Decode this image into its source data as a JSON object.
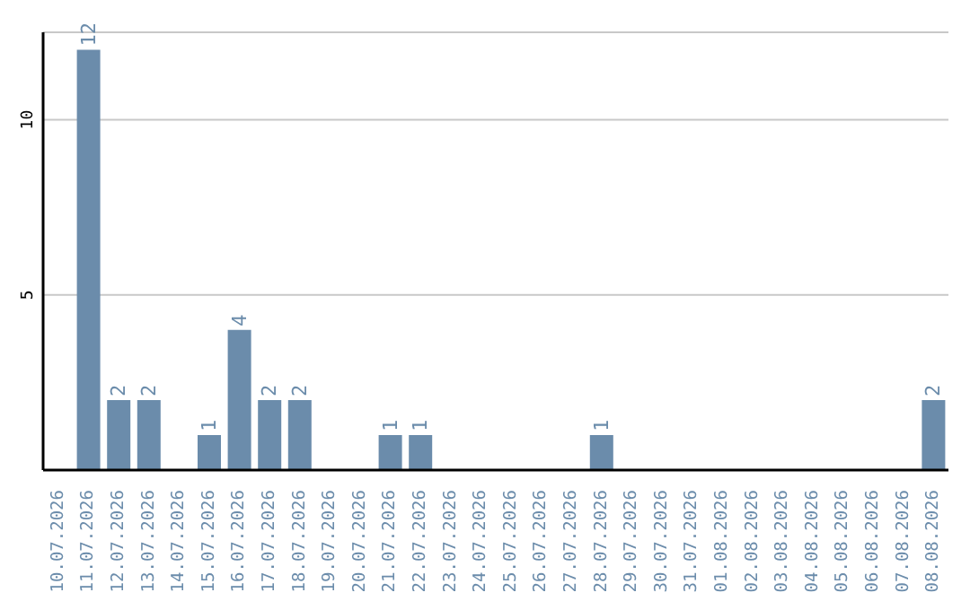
{
  "chart_data": {
    "type": "bar",
    "categories": [
      "10.07.2026",
      "11.07.2026",
      "12.07.2026",
      "13.07.2026",
      "14.07.2026",
      "15.07.2026",
      "16.07.2026",
      "17.07.2026",
      "18.07.2026",
      "19.07.2026",
      "20.07.2026",
      "21.07.2026",
      "22.07.2026",
      "23.07.2026",
      "24.07.2026",
      "25.07.2026",
      "26.07.2026",
      "27.07.2026",
      "28.07.2026",
      "29.07.2026",
      "30.07.2026",
      "31.07.2026",
      "01.08.2026",
      "02.08.2026",
      "03.08.2026",
      "04.08.2026",
      "05.08.2026",
      "06.08.2026",
      "07.08.2026",
      "08.08.2026"
    ],
    "values": [
      0,
      12,
      2,
      2,
      0,
      1,
      4,
      2,
      2,
      0,
      0,
      1,
      1,
      0,
      0,
      0,
      0,
      0,
      1,
      0,
      0,
      0,
      0,
      0,
      0,
      0,
      0,
      0,
      0,
      2
    ],
    "value_labels": [
      null,
      "12",
      "2",
      "2",
      null,
      "1",
      "4",
      "2",
      "2",
      null,
      null,
      "1",
      "1",
      null,
      null,
      null,
      null,
      null,
      "1",
      null,
      null,
      null,
      null,
      null,
      null,
      null,
      null,
      null,
      null,
      "2"
    ],
    "color": "#6b8cab",
    "ylim": [
      0,
      12.5
    ],
    "yticks": [
      5,
      10
    ],
    "grid": "y"
  }
}
